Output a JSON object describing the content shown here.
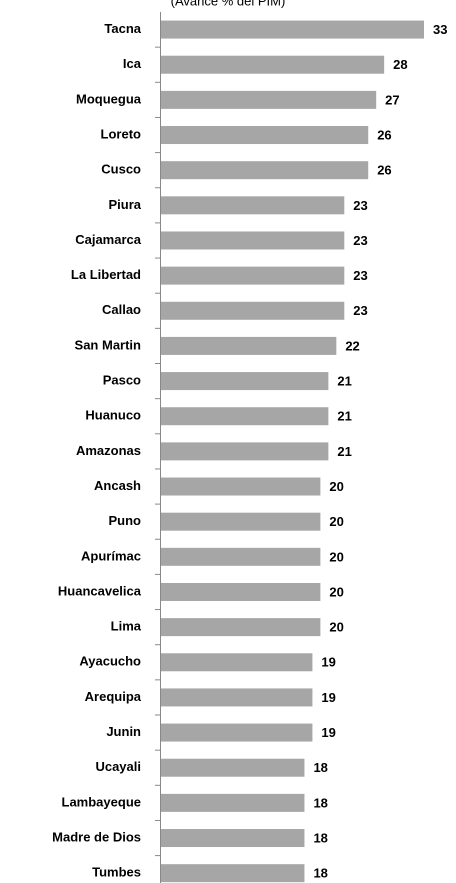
{
  "chart_data": {
    "type": "bar",
    "orientation": "horizontal",
    "subtitle": "(Avance % del PIM)",
    "categories": [
      "Tacna",
      "Ica",
      "Moquegua",
      "Loreto",
      "Cusco",
      "Piura",
      "Cajamarca",
      "La Libertad",
      "Callao",
      "San Martin",
      "Pasco",
      "Huanuco",
      "Amazonas",
      "Ancash",
      "Puno",
      "Apurímac",
      "Huancavelica",
      "Lima",
      "Ayacucho",
      "Arequipa",
      "Junin",
      "Ucayali",
      "Lambayeque",
      "Madre de Dios",
      "Tumbes"
    ],
    "values": [
      33,
      28,
      27,
      26,
      26,
      23,
      23,
      23,
      23,
      22,
      21,
      21,
      21,
      20,
      20,
      20,
      20,
      20,
      19,
      19,
      19,
      18,
      18,
      18,
      18
    ],
    "color": "#a6a6a6",
    "xlim": [
      0,
      33
    ]
  }
}
